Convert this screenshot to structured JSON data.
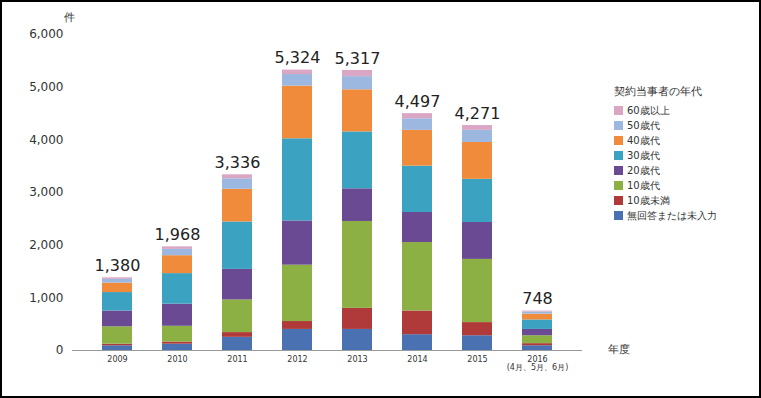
{
  "chart_data": {
    "type": "bar",
    "stacked": true,
    "y_label": "件",
    "x_label": "年度",
    "legend_title": "契約当事者の年代",
    "legend": "right",
    "grid": false,
    "categories": [
      "2009",
      "2010",
      "2011",
      "2012",
      "2013",
      "2014",
      "2015",
      "2016\n(4月、5月、6月)"
    ],
    "ylim": [
      0,
      6000
    ],
    "yticks": [
      0,
      {
        "value": 1000,
        "label": "1,000"
      },
      {
        "value": 2000,
        "label": "2,000"
      },
      {
        "value": 3000,
        "label": "3,000"
      },
      {
        "value": 4000,
        "label": "4,000"
      },
      {
        "value": 5000,
        "label": "5,000"
      },
      {
        "value": 6000,
        "label": "6,000"
      }
    ],
    "totals": [
      1380,
      1968,
      3336,
      5324,
      5317,
      4497,
      4271,
      748
    ],
    "total_labels": [
      "1,380",
      "1,968",
      "3,336",
      "5,324",
      "5,317",
      "4,497",
      "4,271",
      "748"
    ],
    "series": [
      {
        "name": "無回答または未入力",
        "color": "#4a72b2",
        "values": [
          90,
          120,
          250,
          400,
          400,
          300,
          280,
          90
        ]
      },
      {
        "name": "10歳未満",
        "color": "#b03a3a",
        "values": [
          30,
          40,
          90,
          150,
          400,
          450,
          250,
          40
        ]
      },
      {
        "name": "10歳代",
        "color": "#8cb044",
        "values": [
          330,
          300,
          620,
          1070,
          1650,
          1300,
          1200,
          150
        ]
      },
      {
        "name": "20歳代",
        "color": "#6a4a92",
        "values": [
          300,
          420,
          580,
          840,
          620,
          570,
          700,
          120
        ]
      },
      {
        "name": "30歳代",
        "color": "#3ba2c2",
        "values": [
          350,
          580,
          900,
          1560,
          1080,
          880,
          820,
          180
        ]
      },
      {
        "name": "40歳代",
        "color": "#ef8b3a",
        "values": [
          180,
          340,
          620,
          1000,
          800,
          680,
          700,
          110
        ]
      },
      {
        "name": "50歳代",
        "color": "#9db8e0",
        "values": [
          70,
          120,
          200,
          220,
          250,
          220,
          230,
          40
        ]
      },
      {
        "name": "60歳以上",
        "color": "#d9a6c4",
        "values": [
          30,
          48,
          76,
          84,
          117,
          97,
          91,
          18
        ]
      }
    ]
  }
}
